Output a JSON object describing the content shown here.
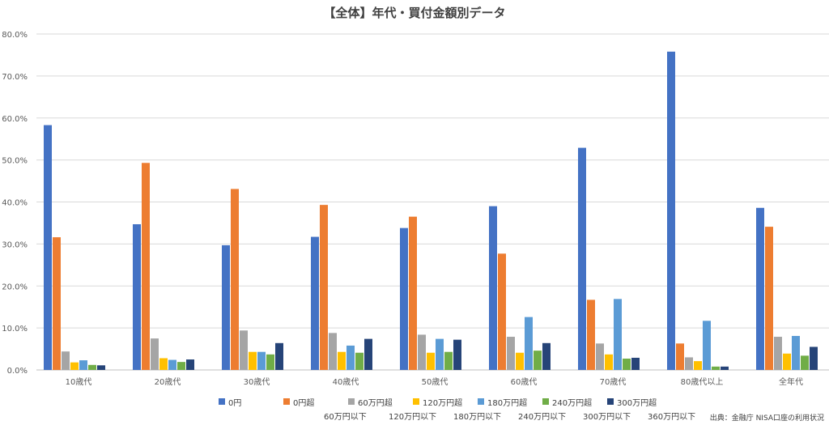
{
  "chart_data": {
    "type": "bar",
    "title": "【全体】年代・買付金額別データ",
    "categories": [
      "10歳代",
      "20歳代",
      "30歳代",
      "40歳代",
      "50歳代",
      "60歳代",
      "70歳代",
      "80歳代以上",
      "全年代"
    ],
    "ylim": [
      0,
      80
    ],
    "yticks": [
      "0.0%",
      "10.0%",
      "20.0%",
      "30.0%",
      "40.0%",
      "50.0%",
      "60.0%",
      "70.0%",
      "80.0%"
    ],
    "grid": true,
    "legend_position": "bottom",
    "series": [
      {
        "name": "0円",
        "sub": "",
        "color": "#4472C4",
        "values": [
          58.3,
          34.7,
          29.7,
          31.7,
          33.8,
          39.0,
          52.9,
          75.8,
          38.6
        ]
      },
      {
        "name": "0円超",
        "sub": "60万円以下",
        "color": "#ED7D31",
        "values": [
          31.6,
          49.3,
          43.1,
          39.3,
          36.5,
          27.7,
          16.7,
          6.3,
          34.1
        ]
      },
      {
        "name": "60万円超",
        "sub": "120万円以下",
        "color": "#A5A5A5",
        "values": [
          4.4,
          7.5,
          9.4,
          8.8,
          8.4,
          7.9,
          6.3,
          3.0,
          7.9
        ]
      },
      {
        "name": "120万円超",
        "sub": "180万円以下",
        "color": "#FFC000",
        "values": [
          1.8,
          2.8,
          4.3,
          4.3,
          4.1,
          4.1,
          3.7,
          2.1,
          3.9
        ]
      },
      {
        "name": "180万円超",
        "sub": "240万円以下",
        "color": "#5B9BD5",
        "values": [
          2.3,
          2.4,
          4.3,
          5.8,
          7.4,
          12.6,
          16.9,
          11.7,
          8.1
        ]
      },
      {
        "name": "240万円超",
        "sub": "300万円以下",
        "color": "#70AD47",
        "values": [
          1.2,
          1.9,
          3.7,
          4.1,
          4.3,
          4.6,
          2.7,
          0.8,
          3.4
        ]
      },
      {
        "name": "300万円超",
        "sub": "360万円以下",
        "color": "#264478",
        "values": [
          1.1,
          2.5,
          6.4,
          7.4,
          7.2,
          6.4,
          2.9,
          0.8,
          5.5
        ]
      }
    ]
  },
  "source_note": "出典：金融庁  NISA口座の利用状況"
}
